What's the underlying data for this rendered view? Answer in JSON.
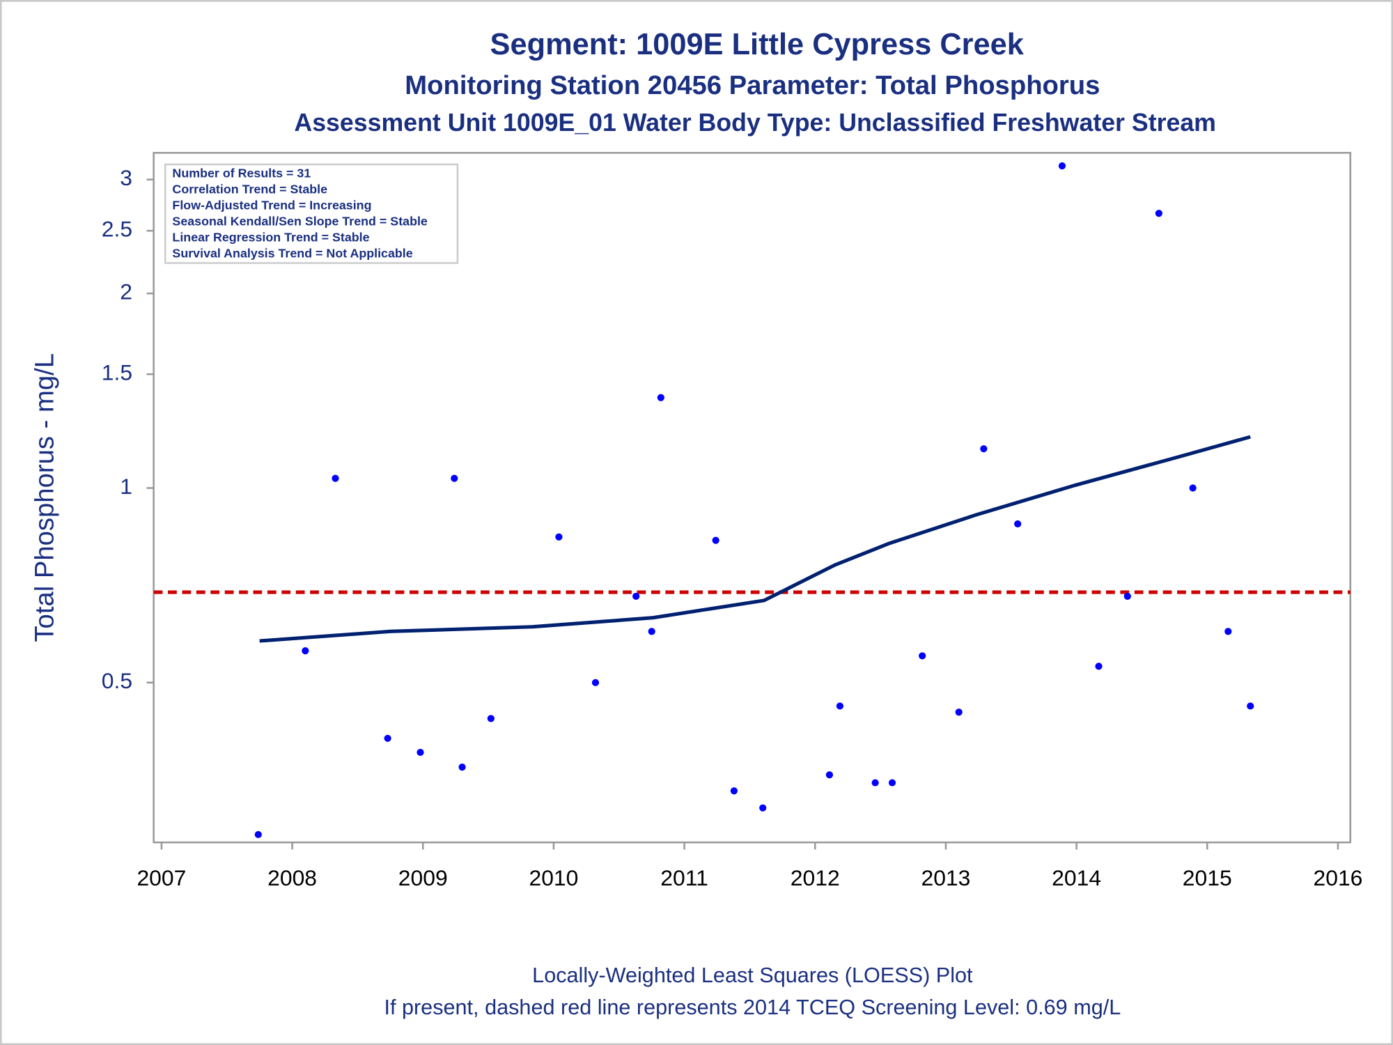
{
  "chart_data": {
    "type": "scatter",
    "titles": [
      "Segment: 1009E  Little Cypress Creek",
      "Monitoring Station 20456 Parameter: Total Phosphorus",
      "Assessment Unit 1009E_01   Water Body Type: Unclassified Freshwater Stream"
    ],
    "y_label": "Total Phosphorus - mg/L",
    "stats_box": [
      "Number of Results = 31",
      "Correlation Trend = Stable",
      "Flow-Adjusted Trend = Increasing",
      "Seasonal Kendall/Sen Slope Trend = Stable",
      "Linear Regression Trend = Stable",
      "Survival Analysis Trend = Not Applicable"
    ],
    "footnotes": [
      "Locally-Weighted Least Squares (LOESS) Plot",
      "If present, dashed red line represents 2014 TCEQ Screening Level: 0.69 mg/L"
    ],
    "series": [
      {
        "type": "scatter",
        "color": "#0000ff",
        "x": [
          2007.74,
          2008.1,
          2008.33,
          2008.73,
          2008.98,
          2009.24,
          2009.3,
          2009.52,
          2010.04,
          2010.32,
          2010.63,
          2010.75,
          2010.82,
          2011.24,
          2011.38,
          2011.6,
          2012.11,
          2012.19,
          2012.46,
          2012.59,
          2012.82,
          2013.1,
          2013.29,
          2013.55,
          2013.89,
          2014.17,
          2014.39,
          2014.63,
          2014.89,
          2015.16,
          2015.33
        ],
        "values": [
          0.291,
          0.56,
          1.035,
          0.41,
          0.39,
          1.035,
          0.37,
          0.44,
          0.84,
          0.5,
          0.68,
          0.6,
          1.38,
          0.83,
          0.34,
          0.32,
          0.36,
          0.46,
          0.35,
          0.35,
          0.55,
          0.45,
          1.15,
          0.88,
          3.15,
          0.53,
          0.68,
          2.66,
          1.0,
          0.6,
          0.46
        ]
      },
      {
        "type": "line",
        "color": "#002070",
        "x": [
          2007.75,
          2008.75,
          2009.84,
          2010.76,
          2011.61,
          2012.15,
          2012.56,
          2013.24,
          2013.99,
          2014.8,
          2015.33
        ],
        "values": [
          0.58,
          0.6,
          0.61,
          0.63,
          0.67,
          0.76,
          0.82,
          0.91,
          1.01,
          1.12,
          1.2
        ]
      }
    ],
    "reference_line": {
      "value": 0.69,
      "color": "#cc0000",
      "dashed": true
    },
    "xlim": [
      2006.94,
      2016.095
    ],
    "xticks": [
      2007,
      2008,
      2009,
      2010,
      2011,
      2012,
      2013,
      2014,
      2015,
      2016
    ],
    "ylim": [
      0.283,
      3.3
    ],
    "yticks": [
      0.5,
      1,
      1.5,
      2,
      2.5,
      3
    ],
    "ylog": true
  }
}
